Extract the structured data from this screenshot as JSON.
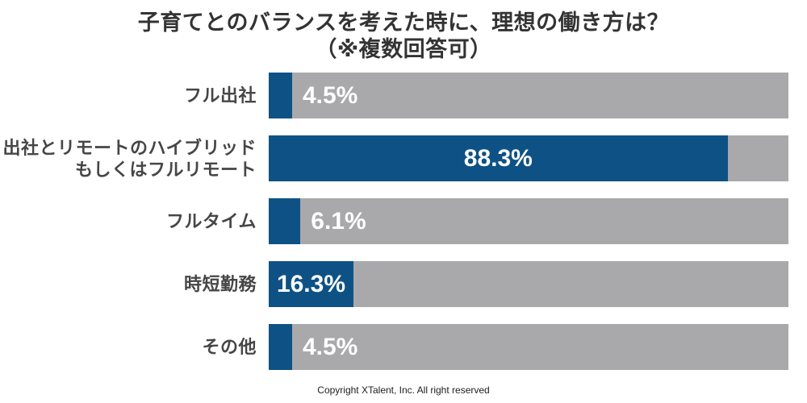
{
  "header": {
    "title_line1": "子育てとのバランスを考えた時に、理想の働き方は？",
    "title_line2": "（※複数回答可）"
  },
  "chart_data": {
    "type": "bar",
    "orientation": "horizontal",
    "title": "子育てとのバランスを考えた時に、理想の働き方は？（※複数回答可）",
    "categories": [
      "フル出社",
      "出社とリモートのハイブリッド\nもしくはフルリモート",
      "フルタイム",
      "時短勤務",
      "その他"
    ],
    "values": [
      4.5,
      88.3,
      6.1,
      16.3,
      4.5
    ],
    "value_labels": [
      "4.5%",
      "88.3%",
      "6.1%",
      "16.3%",
      "4.5%"
    ],
    "xlim": [
      0,
      100
    ],
    "grid": false,
    "legend": "none",
    "bar_color": "#0e5285",
    "track_color": "#a9a9ac",
    "value_label_color": "#ffffff",
    "inside_label_threshold": 10
  },
  "footer": {
    "copyright": "Copyright XTalent, Inc. All right reserved"
  }
}
